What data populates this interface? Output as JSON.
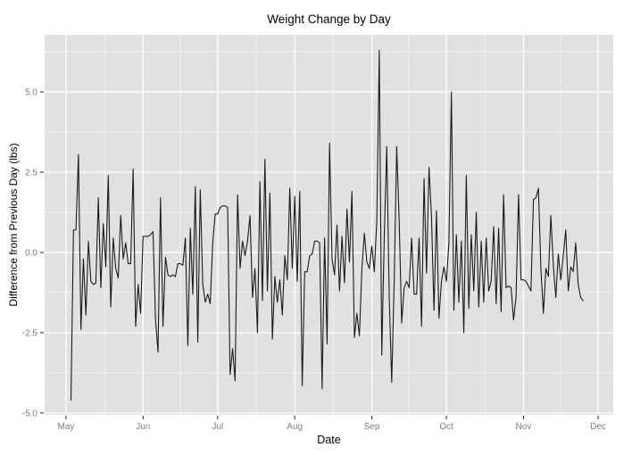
{
  "chart_data": {
    "type": "line",
    "title": "Weight Change by Day",
    "xlabel": "Date",
    "ylabel": "Difference from Previous Day (lbs)",
    "legend": "none",
    "grid": {
      "major": true,
      "minor": true
    },
    "x_tick_labels": [
      "May",
      "Jun",
      "Jul",
      "Aug",
      "Sep",
      "Oct",
      "Nov",
      "Dec"
    ],
    "x_tick_day_offsets": [
      0,
      31,
      61,
      92,
      123,
      153,
      184,
      214
    ],
    "x_minor_day_offsets": [
      15.5,
      46,
      76.5,
      107.5,
      138,
      168.5,
      199
    ],
    "xlim_days": [
      -8.6,
      220.1
    ],
    "y_tick_labels": [
      "-5.0",
      "-2.5",
      "0.0",
      "2.5",
      "5.0"
    ],
    "y_ticks": [
      -5.0,
      -2.5,
      0.0,
      2.5,
      5.0
    ],
    "y_minor": [
      -3.75,
      -1.25,
      1.25,
      3.75,
      6.25
    ],
    "ylim": [
      -5.06,
      6.78
    ],
    "colors": {
      "panel_background": "#E1E1E1",
      "grid_major": "#FFFFFF",
      "grid_minor": "#EFEFEF",
      "line": "#1B1B1B",
      "tick_mark": "#333333",
      "tick_label": "#7E7E7E",
      "text": "#000000",
      "figure_background": "#FFFFFF"
    },
    "series": [
      {
        "name": "daily weight change",
        "start_day_offset_from_may1": 2,
        "values": [
          -4.6,
          0.7,
          0.7,
          3.05,
          -2.4,
          -0.2,
          -1.95,
          0.35,
          -0.9,
          -1.0,
          -0.95,
          1.7,
          -1.1,
          0.9,
          -0.45,
          2.4,
          -1.7,
          0.45,
          -0.5,
          -0.8,
          1.15,
          -0.2,
          0.3,
          -0.35,
          -0.35,
          2.6,
          -2.3,
          -1.0,
          -1.9,
          0.5,
          0.5,
          0.5,
          0.55,
          0.65,
          -2.1,
          -3.1,
          1.7,
          -2.3,
          -0.15,
          -0.7,
          -0.75,
          -0.7,
          -0.75,
          -0.35,
          -0.35,
          -0.4,
          0.45,
          -2.9,
          0.75,
          -1.3,
          2.05,
          -2.8,
          1.95,
          -1.0,
          -1.55,
          -1.3,
          -1.6,
          0.3,
          1.2,
          1.2,
          1.4,
          1.45,
          1.45,
          1.4,
          -3.8,
          -3.0,
          -4.0,
          1.8,
          -0.5,
          0.35,
          -0.1,
          0.35,
          1.15,
          -1.4,
          -0.5,
          -2.5,
          2.2,
          -1.5,
          2.9,
          -1.2,
          1.85,
          -2.7,
          -0.75,
          -1.55,
          -0.85,
          -1.95,
          -0.1,
          -0.85,
          2.0,
          -0.5,
          1.75,
          -0.9,
          1.9,
          -4.15,
          -0.6,
          -0.6,
          -0.1,
          -0.05,
          0.35,
          0.35,
          0.3,
          -4.25,
          0.45,
          -2.85,
          3.4,
          -0.2,
          -0.7,
          0.85,
          -1.2,
          0.5,
          -0.95,
          1.35,
          -0.3,
          1.9,
          -2.65,
          -1.9,
          -2.6,
          -0.5,
          0.6,
          -0.3,
          -0.5,
          0.2,
          -0.6,
          1.0,
          6.3,
          -3.2,
          0.5,
          3.3,
          -1.4,
          -4.05,
          -0.9,
          3.3,
          1.0,
          -2.2,
          -1.1,
          -0.9,
          -1.1,
          0.45,
          -1.3,
          -1.3,
          0.45,
          -2.3,
          2.3,
          -0.65,
          2.65,
          1.1,
          -1.8,
          1.3,
          -2.05,
          -0.9,
          -0.45,
          -0.9,
          0.3,
          5.0,
          -1.8,
          0.55,
          -1.55,
          0.35,
          -2.5,
          2.4,
          -1.75,
          0.55,
          -1.2,
          1.25,
          -1.7,
          0.35,
          -1.55,
          0.45,
          -1.2,
          -0.9,
          0.8,
          -1.6,
          0.75,
          -1.85,
          1.8,
          -1.1,
          -1.05,
          -1.1,
          -2.1,
          -1.4,
          1.8,
          -0.85,
          -0.85,
          -0.9,
          -1.05,
          -1.2,
          1.65,
          1.7,
          2.0,
          -0.5,
          -1.9,
          -0.5,
          -0.75,
          1.15,
          -0.4,
          -1.4,
          -0.05,
          -0.85,
          -0.1,
          0.7,
          -1.2,
          -0.45,
          -0.6,
          0.3,
          -1.0,
          -1.4,
          -1.5
        ]
      }
    ]
  }
}
